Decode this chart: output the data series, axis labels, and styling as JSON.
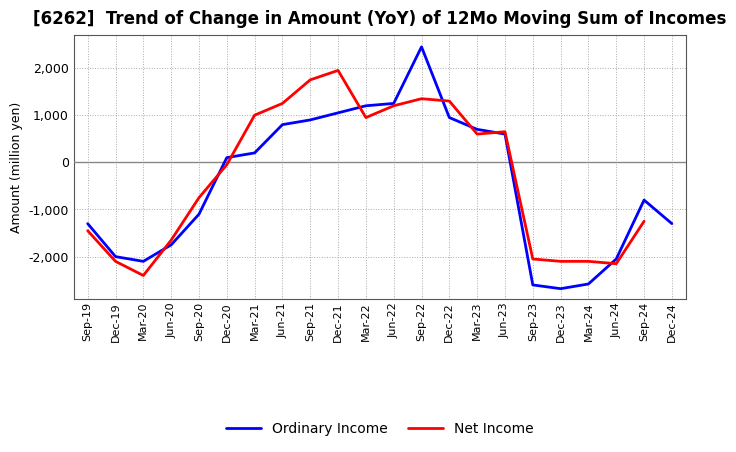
{
  "title": "[6262]  Trend of Change in Amount (YoY) of 12Mo Moving Sum of Incomes",
  "ylabel": "Amount (million yen)",
  "x_labels": [
    "Sep-19",
    "Dec-19",
    "Mar-20",
    "Jun-20",
    "Sep-20",
    "Dec-20",
    "Mar-21",
    "Jun-21",
    "Sep-21",
    "Dec-21",
    "Mar-22",
    "Jun-22",
    "Sep-22",
    "Dec-22",
    "Mar-23",
    "Jun-23",
    "Sep-23",
    "Dec-23",
    "Mar-24",
    "Jun-24",
    "Sep-24",
    "Dec-24"
  ],
  "ordinary_income": [
    -1300,
    -2000,
    -2100,
    -1750,
    -1100,
    100,
    200,
    800,
    900,
    1050,
    1200,
    1250,
    2450,
    950,
    700,
    600,
    -2600,
    -2680,
    -2580,
    -2050,
    -800,
    -1300
  ],
  "net_income": [
    -1450,
    -2100,
    -2400,
    -1650,
    -750,
    -50,
    1000,
    1250,
    1750,
    1950,
    950,
    1200,
    1350,
    1300,
    600,
    650,
    -2050,
    -2100,
    -2100,
    -2150,
    -1250,
    null
  ],
  "ylim": [
    -2900,
    2700
  ],
  "yticks": [
    -2000,
    -1000,
    0,
    1000,
    2000
  ],
  "ordinary_color": "#0000ff",
  "net_color": "#ff0000",
  "background_color": "#ffffff",
  "grid_color": "#aaaaaa",
  "zero_line_color": "#888888",
  "legend_labels": [
    "Ordinary Income",
    "Net Income"
  ],
  "title_fontsize": 12,
  "ylabel_fontsize": 9,
  "tick_fontsize": 8,
  "legend_fontsize": 10,
  "line_width": 2.0
}
